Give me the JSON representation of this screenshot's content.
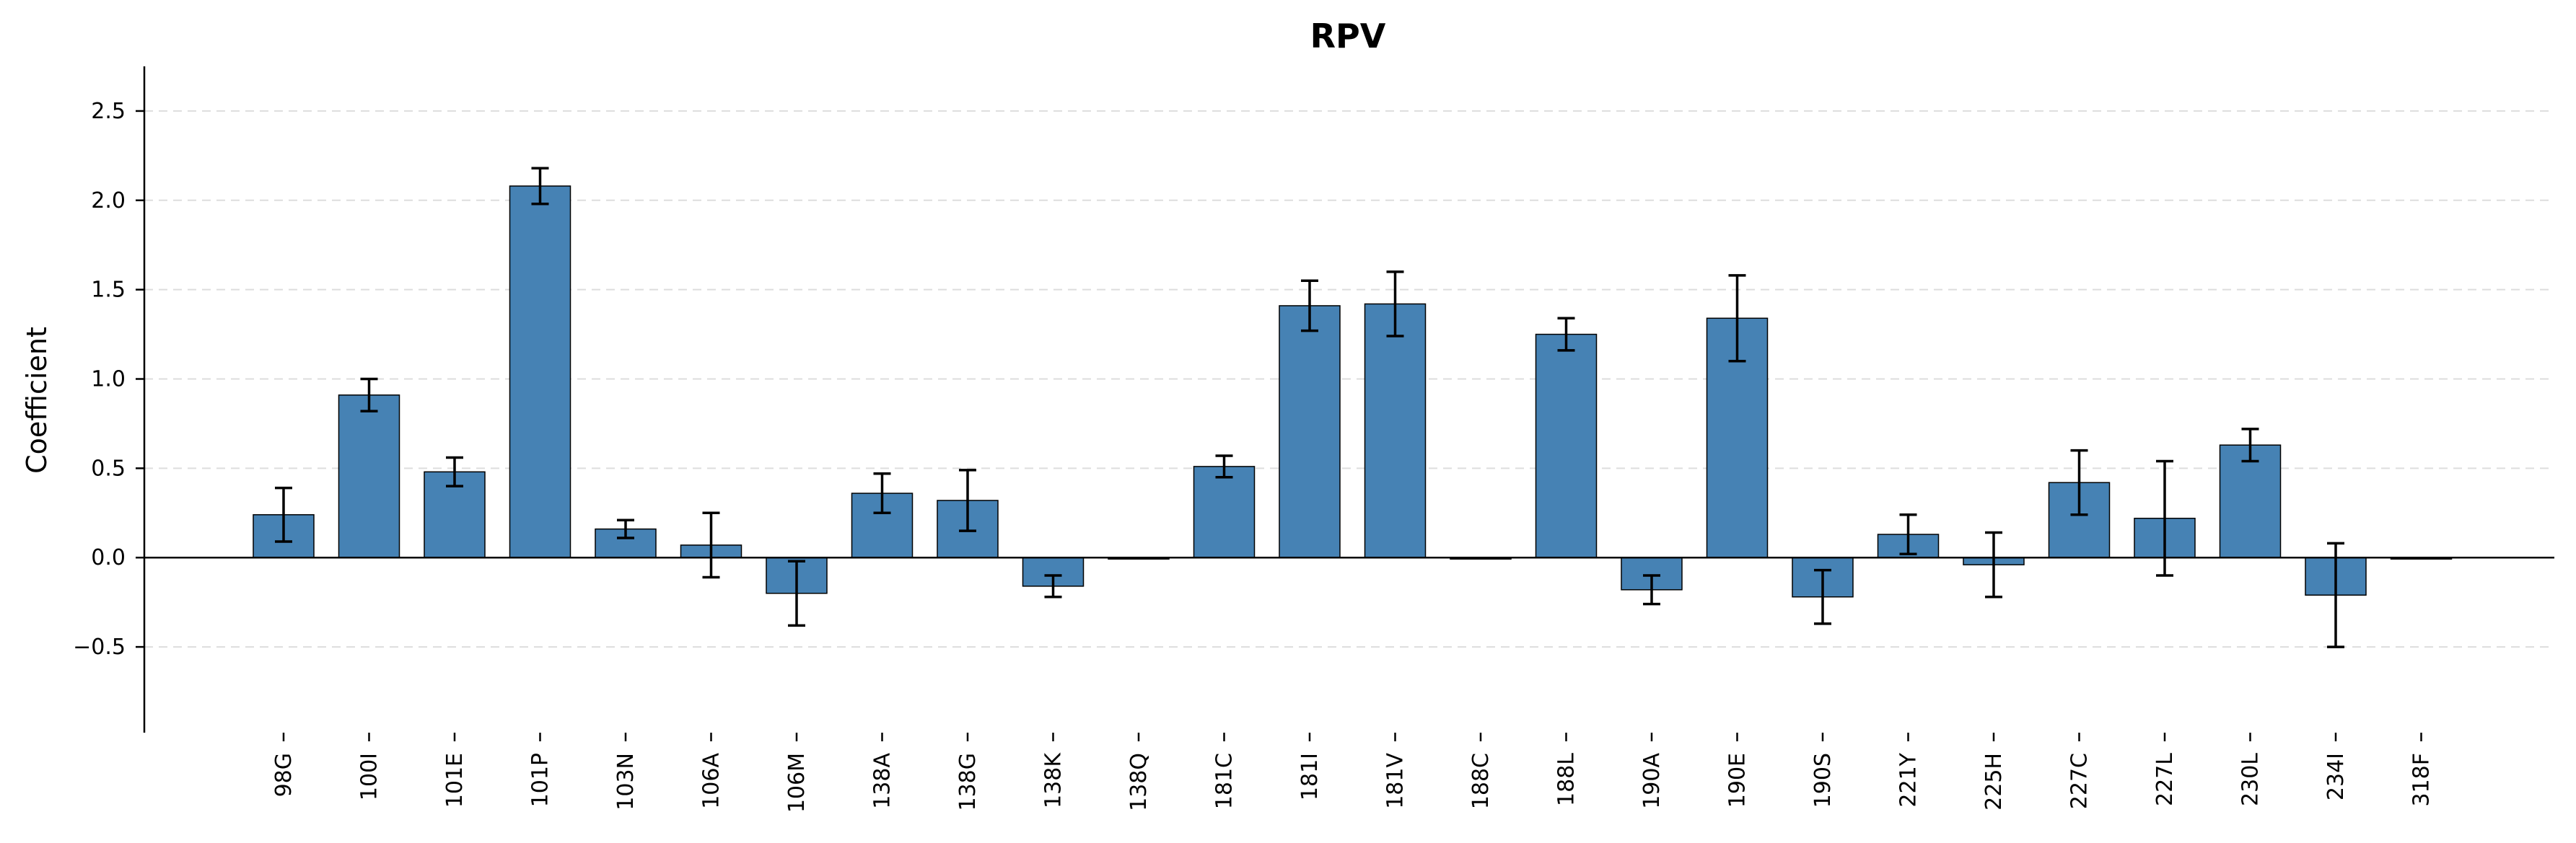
{
  "chart_data": {
    "type": "bar",
    "title": "RPV",
    "xlabel": "",
    "ylabel": "Coefficient",
    "ylim": [
      -0.98,
      2.75
    ],
    "yticks": [
      -0.5,
      0.0,
      0.5,
      1.0,
      1.5,
      2.0,
      2.5
    ],
    "ytick_labels": [
      "−0.5",
      "0.0",
      "0.5",
      "1.0",
      "1.5",
      "2.0",
      "2.5"
    ],
    "grid": "y-dashed",
    "bar_color": "#4682b4",
    "categories": [
      "98G",
      "100I",
      "101E",
      "101P",
      "103N",
      "106A",
      "106M",
      "138A",
      "138G",
      "138K",
      "138Q",
      "181C",
      "181I",
      "181V",
      "188C",
      "188L",
      "190A",
      "190E",
      "190S",
      "221Y",
      "225H",
      "227C",
      "227L",
      "230L",
      "234I",
      "318F"
    ],
    "values": [
      0.24,
      0.91,
      0.48,
      2.08,
      0.16,
      0.07,
      -0.2,
      0.36,
      0.32,
      -0.16,
      0.0,
      0.51,
      1.41,
      1.42,
      0.0,
      1.25,
      -0.18,
      1.34,
      -0.22,
      0.13,
      -0.04,
      0.42,
      0.22,
      0.63,
      -0.21,
      0.0
    ],
    "error": [
      0.15,
      0.09,
      0.08,
      0.1,
      0.05,
      0.18,
      0.18,
      0.11,
      0.17,
      0.06,
      0.0,
      0.06,
      0.14,
      0.18,
      0.0,
      0.09,
      0.08,
      0.24,
      0.15,
      0.11,
      0.18,
      0.18,
      0.32,
      0.09,
      0.29,
      0.0
    ]
  }
}
